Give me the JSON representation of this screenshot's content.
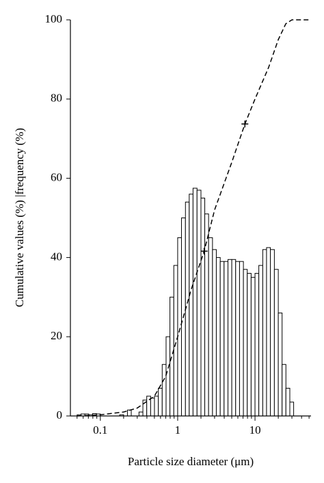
{
  "chart_data": {
    "type": "histogram",
    "x_label": "Particle size diameter (μm)",
    "y_label": "Cumulative values (%) |frequency (%)",
    "xscale": "log",
    "xlim": [
      0.041,
      53
    ],
    "ylim": [
      0,
      100
    ],
    "xticks": [
      0.1,
      1,
      10
    ],
    "xminorticks": [
      0.05,
      0.06,
      0.07,
      0.08,
      0.09,
      0.2,
      0.3,
      0.4,
      0.5,
      0.6,
      0.7,
      0.8,
      0.9,
      2,
      3,
      4,
      5,
      6,
      7,
      8,
      9,
      20,
      30,
      40,
      50
    ],
    "yticks": [
      0,
      20,
      40,
      60,
      80,
      100
    ],
    "color": "#ffffff",
    "edgecolor": "#000000",
    "bins": [
      0.0501,
      0.0562,
      0.0631,
      0.0708,
      0.0794,
      0.0891,
      0.1,
      0.112,
      0.126,
      0.141,
      0.158,
      0.178,
      0.2,
      0.224,
      0.251,
      0.282,
      0.316,
      0.355,
      0.398,
      0.447,
      0.501,
      0.562,
      0.631,
      0.708,
      0.794,
      0.891,
      1,
      1.12,
      1.26,
      1.41,
      1.58,
      1.78,
      2,
      2.24,
      2.51,
      2.82,
      3.16,
      3.55,
      3.98,
      4.47,
      5.01,
      5.62,
      6.31,
      7.08,
      7.94,
      8.91,
      10,
      11.2,
      12.6,
      14.1,
      15.8,
      17.8,
      20,
      22.4,
      25.1,
      28.2,
      31.6,
      35.5
    ],
    "counts": [
      0.3,
      0.5,
      0.5,
      0.3,
      0.6,
      0.5,
      0,
      0,
      0,
      0,
      0,
      0.3,
      0,
      1.5,
      0,
      0,
      1,
      4,
      5,
      4.5,
      5,
      7,
      13,
      20,
      30,
      38,
      45,
      50,
      54,
      56,
      57.5,
      57,
      55,
      51,
      45,
      42,
      40,
      39,
      39,
      39.5,
      39.5,
      39,
      39,
      37,
      36,
      35,
      36,
      38,
      42,
      42.5,
      42,
      37,
      26,
      13,
      7,
      3.5,
      0
    ],
    "cumulative": {
      "type": "line",
      "color": "#000000",
      "dashed": true,
      "x": [
        0.05,
        0.1,
        0.2,
        0.3,
        0.5,
        0.7,
        1,
        1.5,
        2.2,
        3,
        5,
        7.4,
        10,
        15,
        20,
        25,
        30,
        40,
        50
      ],
      "values": [
        0,
        0.3,
        1,
        2,
        5,
        10,
        20,
        32,
        41.6,
        52,
        64,
        73.7,
        80,
        88,
        95,
        99,
        100,
        100,
        100
      ]
    },
    "markers": {
      "type": "scatter",
      "marker": "+",
      "color": "#000000",
      "x": [
        2.2,
        7.4
      ],
      "values": [
        41.6,
        73.7
      ]
    }
  }
}
